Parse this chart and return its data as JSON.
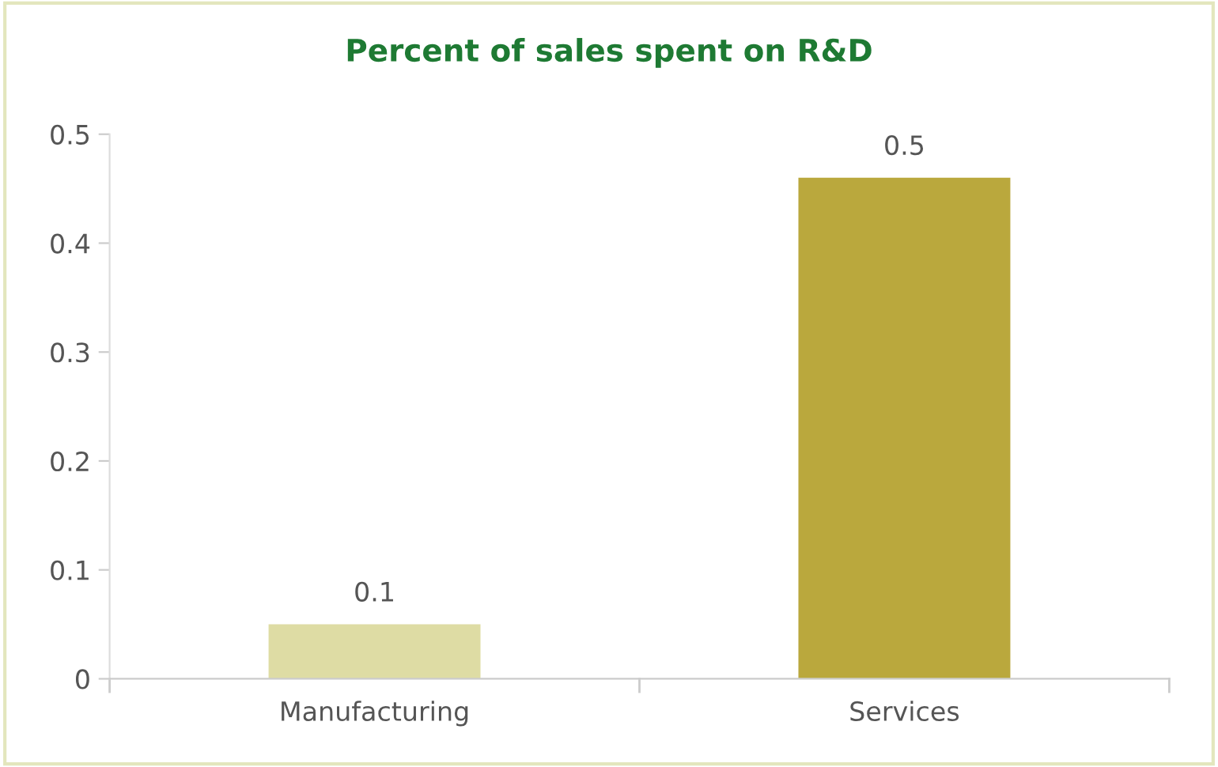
{
  "chart_data": {
    "type": "bar",
    "title": "Percent of sales spent on R&D",
    "categories": [
      "Manufacturing",
      "Services"
    ],
    "values": [
      0.05,
      0.46
    ],
    "colors": [
      "#dedca4",
      "#baa83d"
    ],
    "value_labels": [
      "0.1",
      "0.5"
    ],
    "ylim": [
      0,
      0.5
    ],
    "yticks": [
      0,
      0.1,
      0.2,
      0.3,
      0.4,
      0.5
    ],
    "grid": false,
    "legend": false
  }
}
